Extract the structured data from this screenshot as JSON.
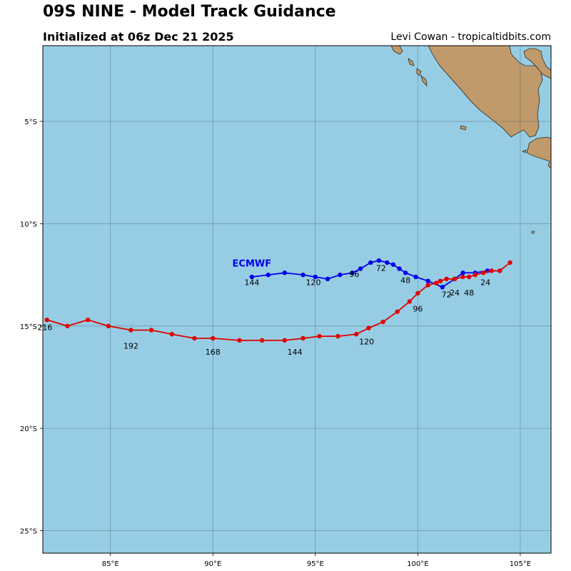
{
  "header": {
    "title": "09S NINE - Model Track Guidance",
    "subtitle": "Initialized at 06z Dec 21 2025",
    "credit": "Levi Cowan - tropicaltidbits.com"
  },
  "colors": {
    "ocean": "#97cde4",
    "land": "#c09a6b",
    "grid": "#3c5a66",
    "ecmwf": "#0000ee",
    "red_track": "#e00000"
  },
  "chart_data": {
    "type": "map",
    "lon_range": [
      81.7,
      106.5
    ],
    "lat_range": [
      -26.1,
      -1.3
    ],
    "lon_ticks": [
      85,
      90,
      95,
      100,
      105
    ],
    "lat_ticks": [
      -5,
      -10,
      -15,
      -20,
      -25
    ],
    "lon_tick_labels": [
      "85°E",
      "90°E",
      "95°E",
      "100°E",
      "105°E"
    ],
    "lat_tick_labels": [
      "5°S",
      "10°S",
      "15°S",
      "20°S",
      "25°S"
    ],
    "grid": true,
    "tracks": [
      {
        "name": "ECMWF",
        "color": "#0000ee",
        "points": [
          [
            -12.3,
            104.0
          ],
          [
            -12.3,
            103.4
          ],
          [
            -12.4,
            102.8
          ],
          [
            -12.4,
            102.2
          ],
          [
            -12.7,
            101.8
          ],
          [
            -13.1,
            101.2
          ],
          [
            -12.8,
            100.5
          ],
          [
            -12.6,
            99.9
          ],
          [
            -12.4,
            99.4
          ],
          [
            -12.2,
            99.1
          ],
          [
            -12.0,
            98.8
          ],
          [
            -11.9,
            98.5
          ],
          [
            -11.8,
            98.1
          ],
          [
            -11.9,
            97.7
          ],
          [
            -12.2,
            97.2
          ],
          [
            -12.4,
            96.8
          ],
          [
            -12.5,
            96.2
          ],
          [
            -12.7,
            95.6
          ],
          [
            -12.6,
            95.0
          ],
          [
            -12.5,
            94.4
          ],
          [
            -12.4,
            93.5
          ],
          [
            -12.5,
            92.7
          ],
          [
            -12.6,
            91.9
          ]
        ],
        "hour_labels": [
          {
            "hour": "24",
            "lat": -13.5,
            "lon": 101.8
          },
          {
            "hour": "48",
            "lat": -12.9,
            "lon": 99.4
          },
          {
            "hour": "72",
            "lat": -12.3,
            "lon": 98.2
          },
          {
            "hour": "96",
            "lat": -12.6,
            "lon": 96.9
          },
          {
            "hour": "120",
            "lat": -13.0,
            "lon": 94.9
          },
          {
            "hour": "144",
            "lat": -13.0,
            "lon": 91.9
          }
        ]
      },
      {
        "name": "",
        "color": "#e00000",
        "points": [
          [
            -11.9,
            104.5
          ],
          [
            -12.3,
            104.0
          ],
          [
            -12.3,
            103.6
          ],
          [
            -12.4,
            103.2
          ],
          [
            -12.5,
            102.8
          ],
          [
            -12.6,
            102.5
          ],
          [
            -12.6,
            102.2
          ],
          [
            -12.7,
            101.8
          ],
          [
            -12.7,
            101.4
          ],
          [
            -12.8,
            101.1
          ],
          [
            -12.9,
            100.9
          ],
          [
            -13.0,
            100.5
          ],
          [
            -13.4,
            100.0
          ],
          [
            -13.8,
            99.6
          ],
          [
            -14.3,
            99.0
          ],
          [
            -14.8,
            98.3
          ],
          [
            -15.1,
            97.6
          ],
          [
            -15.4,
            97.0
          ],
          [
            -15.5,
            96.1
          ],
          [
            -15.5,
            95.2
          ],
          [
            -15.6,
            94.4
          ],
          [
            -15.7,
            93.5
          ],
          [
            -15.7,
            92.4
          ],
          [
            -15.7,
            91.3
          ],
          [
            -15.6,
            90.0
          ],
          [
            -15.6,
            89.1
          ],
          [
            -15.4,
            88.0
          ],
          [
            -15.2,
            87.0
          ],
          [
            -15.2,
            86.0
          ],
          [
            -15.0,
            84.9
          ],
          [
            -14.7,
            83.9
          ],
          [
            -15.0,
            82.9
          ],
          [
            -14.7,
            81.9
          ]
        ],
        "hour_labels": [
          {
            "hour": "24",
            "lat": -13.0,
            "lon": 103.3
          },
          {
            "hour": "48",
            "lat": -13.5,
            "lon": 102.5
          },
          {
            "hour": "72",
            "lat": -13.6,
            "lon": 101.4
          },
          {
            "hour": "96",
            "lat": -14.3,
            "lon": 100.0
          },
          {
            "hour": "120",
            "lat": -15.9,
            "lon": 97.5
          },
          {
            "hour": "144",
            "lat": -16.4,
            "lon": 94.0
          },
          {
            "hour": "168",
            "lat": -16.4,
            "lon": 90.0
          },
          {
            "hour": "192",
            "lat": -16.1,
            "lon": 86.0
          },
          {
            "hour": "216",
            "lat": -15.2,
            "lon": 81.8
          }
        ]
      }
    ],
    "labels": [
      {
        "text": "ECMWF",
        "lat": -12.1,
        "lon": 91.9,
        "color": "#0000ee"
      }
    ]
  }
}
